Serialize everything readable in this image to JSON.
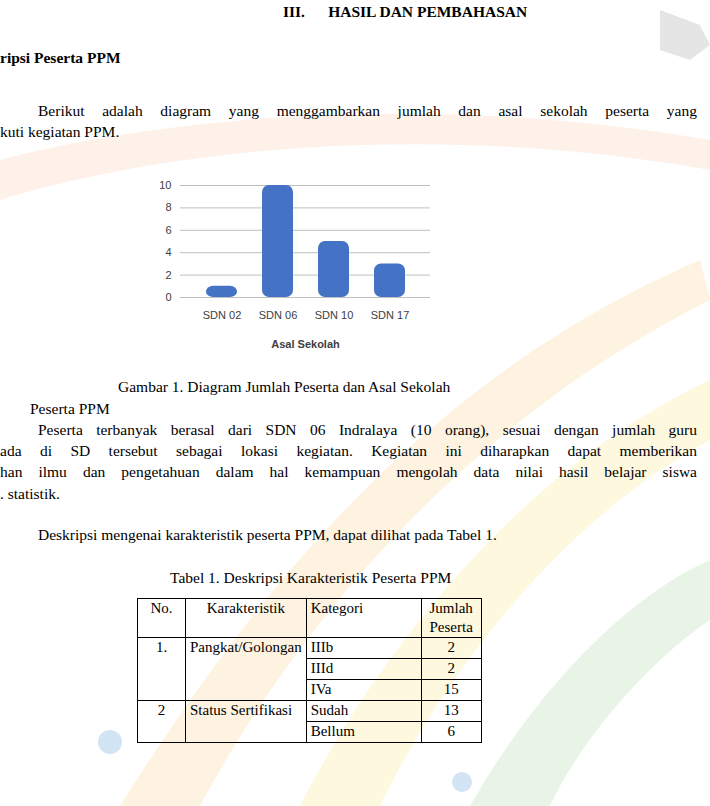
{
  "document": {
    "heading": "III.      HASIL DAN PEMBAHASAN",
    "section": "ripsi Peserta PPM",
    "intro_lines": [
      "Berikut adalah diagram yang menggambarkan jumlah dan asal sekolah peserta yang",
      "kuti kegiatan PPM."
    ],
    "figure_caption": [
      "Gambar 1. Diagram Jumlah Peserta dan Asal Sekolah",
      "Peserta PPM"
    ],
    "paragraph_lines": [
      "Peserta terbanyak berasal dari SDN 06 Indralaya (10 orang), sesuai dengan jumlah guru",
      "ada di SD tersebut sebagai lokasi kegiatan.  Kegiatan ini diharapkan dapat memberikan",
      "han ilmu dan pengetahuan dalam hal kemampuan mengolah data nilai hasil belajar siswa",
      ". statistik."
    ],
    "table_intro": "Deskripsi mengenai karakteristik peserta PPM, dapat dilihat pada Tabel 1.",
    "table": {
      "title": "Tabel 1. Deskripsi Karakteristik Peserta PPM",
      "header": [
        "No.",
        "Karakteristik",
        "Kategori",
        "Jumlah Peserta"
      ],
      "groups": [
        {
          "no": "1.",
          "label": "Pangkat/Golongan",
          "rows": [
            [
              "IIIb",
              2
            ],
            [
              "IIId",
              2
            ],
            [
              "IVa",
              15
            ]
          ]
        },
        {
          "no": "2",
          "label": "Status Sertifikasi",
          "rows": [
            [
              "Sudah",
              13
            ],
            [
              "Bellum",
              6
            ]
          ]
        }
      ]
    }
  },
  "chart_data": {
    "type": "bar",
    "x_label": "Asal Sekolah",
    "categories": [
      "SDN 02",
      "SDN 06",
      "SDN 10",
      "SDN 17"
    ],
    "values": [
      1,
      10,
      5,
      3
    ],
    "color": "#4472c4",
    "ylim": [
      0,
      10
    ],
    "yticks": [
      0,
      2,
      4,
      6,
      8,
      10
    ],
    "grid": true
  }
}
